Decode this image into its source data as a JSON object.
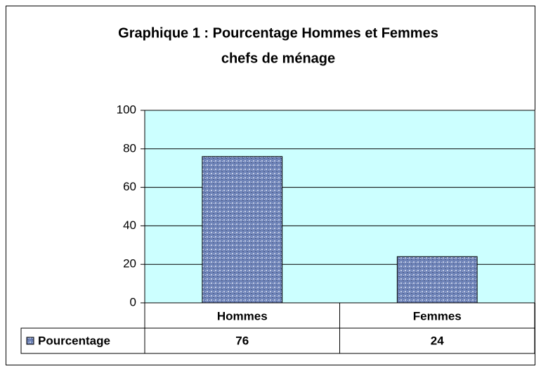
{
  "chart_data": {
    "type": "bar",
    "title": "Graphique 1 : Pourcentage Hommes et Femmes",
    "subtitle": "chefs de ménage",
    "categories": [
      "Hommes",
      "Femmes"
    ],
    "series": [
      {
        "name": "Pourcentage",
        "color": "#6f84b8",
        "values": [
          76,
          24
        ]
      }
    ],
    "ylim": [
      0,
      100
    ],
    "yticks": [
      0,
      20,
      40,
      60,
      80,
      100
    ],
    "grid": true,
    "plot_background": "#ccffff",
    "data_table": true
  }
}
